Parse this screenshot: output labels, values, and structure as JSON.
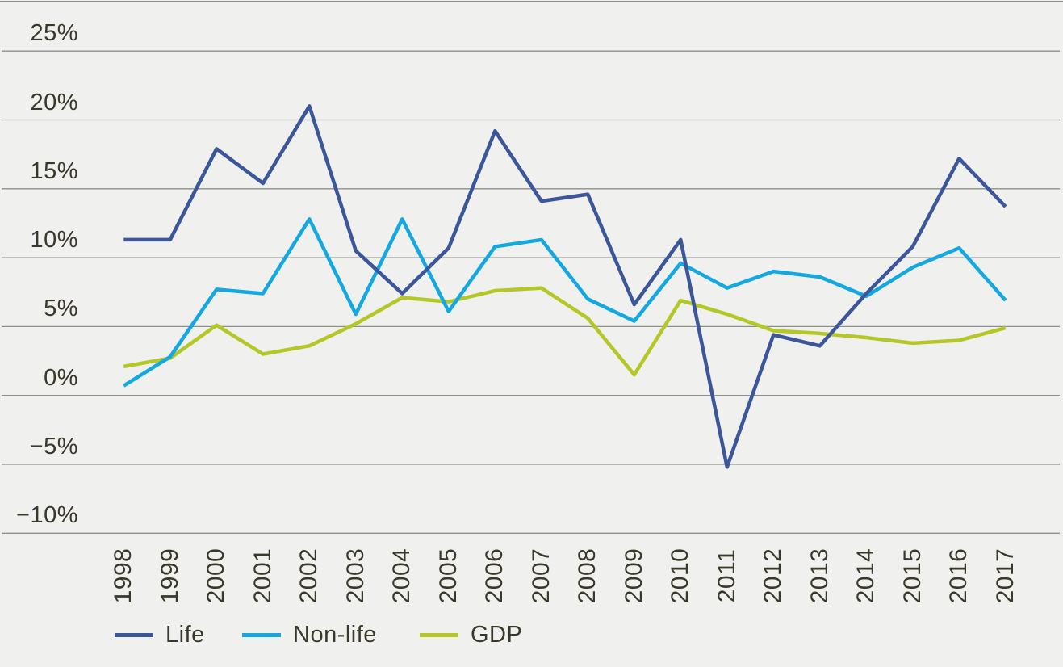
{
  "chart_data": {
    "type": "line",
    "title": "",
    "xlabel": "",
    "ylabel": "",
    "x": [
      "1998",
      "1999",
      "2000",
      "2001",
      "2002",
      "2003",
      "2004",
      "2005",
      "2006",
      "2007",
      "2008",
      "2009",
      "2010",
      "2011",
      "2012",
      "2013",
      "2014",
      "2015",
      "2016",
      "2017"
    ],
    "series": [
      {
        "name": "Life",
        "color": "#3b5699",
        "values": [
          11.3,
          11.3,
          17.9,
          15.4,
          21.0,
          10.5,
          7.4,
          10.7,
          19.2,
          14.1,
          14.6,
          6.6,
          11.3,
          -5.2,
          4.4,
          3.6,
          7.4,
          10.8,
          17.2,
          13.7
        ]
      },
      {
        "name": "Non-life",
        "color": "#14a8e1",
        "values": [
          0.7,
          2.8,
          7.7,
          7.4,
          12.8,
          5.9,
          12.8,
          6.1,
          10.8,
          11.3,
          7.0,
          5.4,
          9.6,
          7.8,
          9.0,
          8.6,
          7.2,
          9.3,
          10.7,
          6.9
        ]
      },
      {
        "name": "GDP",
        "color": "#b4c727",
        "values": [
          2.1,
          2.7,
          5.1,
          3.0,
          3.6,
          5.2,
          7.1,
          6.8,
          7.6,
          7.8,
          5.6,
          1.5,
          6.9,
          5.9,
          4.7,
          4.5,
          4.2,
          3.8,
          4.0,
          4.9
        ]
      }
    ],
    "y_axis": {
      "unit": "%",
      "min": -10,
      "max": 25,
      "step": 5,
      "tick_values": [
        25,
        20,
        15,
        10,
        5,
        0,
        -5,
        -10
      ],
      "tick_labels": [
        "25%",
        "20%",
        "15%",
        "10%",
        "5%",
        "0%",
        "−5%",
        "−10%"
      ]
    },
    "grid": "horizontal",
    "legend": {
      "position": "bottom-left",
      "entries": [
        "Life",
        "Non-life",
        "GDP"
      ]
    },
    "colors": {
      "background": "#f0f0ee",
      "gridline": "#8e8e8b",
      "text": "#3a382b"
    }
  }
}
